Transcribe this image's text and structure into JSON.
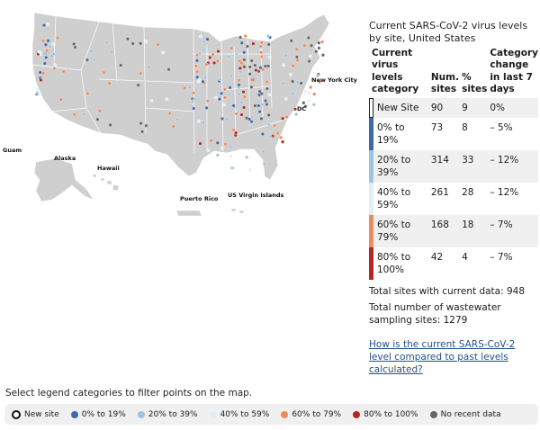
{
  "panel": {
    "title": "Current SARS-CoV-2 virus levels by site, United States",
    "headers": {
      "category": "Current virus levels category",
      "num_sites": "Num. sites",
      "pct_sites": "% sites",
      "change": "Category change in last 7 days"
    },
    "rows": [
      {
        "category": "New Site",
        "num_sites": "90",
        "pct_sites": "9",
        "change": "0%",
        "color": "#ffffff"
      },
      {
        "category": "0% to 19%",
        "num_sites": "73",
        "pct_sites": "8",
        "change": "– 5%",
        "color": "#3e69ab"
      },
      {
        "category": "20% to 39%",
        "num_sites": "314",
        "pct_sites": "33",
        "change": "– 12%",
        "color": "#9fc3e0"
      },
      {
        "category": "40% to 59%",
        "num_sites": "261",
        "pct_sites": "28",
        "change": "– 12%",
        "color": "#e2eef7"
      },
      {
        "category": "60% to 79%",
        "num_sites": "168",
        "pct_sites": "18",
        "change": "– 7%",
        "color": "#ec8c5e"
      },
      {
        "category": "80% to 100%",
        "num_sites": "42",
        "pct_sites": "4",
        "change": "– 7%",
        "color": "#b52722"
      }
    ],
    "total_current": "Total sites with current data: 948",
    "total_sampling": "Total number of wastewater sampling sites: 1279",
    "link_text": "How is the current SARS-CoV-2 level compared to past levels calculated?"
  },
  "map": {
    "labels": {
      "nyc": "New York City",
      "dc": "DC",
      "guam": "Guam",
      "alaska": "Alaska",
      "hawaii": "Hawaii",
      "puerto_rico": "Puerto Rico",
      "usvi": "US Virgin Islands"
    },
    "colors": {
      "land": "#cfcfcf",
      "border": "#ffffff"
    }
  },
  "filter": {
    "instruction": "Select legend categories to filter points on the map.",
    "items": [
      {
        "label": "New site",
        "color": "#ffffff"
      },
      {
        "label": "0% to 19%",
        "color": "#3e69ab"
      },
      {
        "label": "20% to 39%",
        "color": "#9fc3e0"
      },
      {
        "label": "40% to 59%",
        "color": "#e2eef7"
      },
      {
        "label": "60% to 79%",
        "color": "#ec8c5e"
      },
      {
        "label": "80% to 100%",
        "color": "#b52722"
      },
      {
        "label": "No recent data",
        "color": "#666666"
      }
    ]
  }
}
